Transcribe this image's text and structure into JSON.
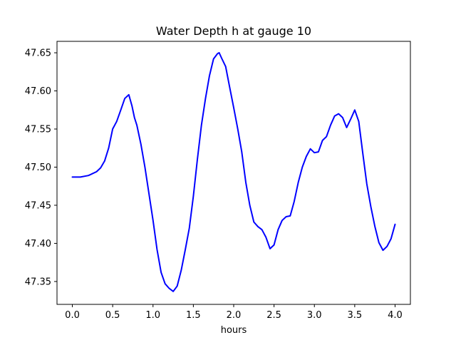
{
  "chart_data": {
    "type": "line",
    "title": "Water Depth h at gauge 10",
    "xlabel": "hours",
    "ylabel": "",
    "xlim": [
      -0.19,
      4.19
    ],
    "ylim": [
      47.32,
      47.665
    ],
    "grid": false,
    "legend": "none",
    "x_ticks": [
      0.0,
      0.5,
      1.0,
      1.5,
      2.0,
      2.5,
      3.0,
      3.5,
      4.0
    ],
    "x_tick_labels": [
      "0.0",
      "0.5",
      "1.0",
      "1.5",
      "2.0",
      "2.5",
      "3.0",
      "3.5",
      "4.0"
    ],
    "y_ticks": [
      47.35,
      47.4,
      47.45,
      47.5,
      47.55,
      47.6,
      47.65
    ],
    "y_tick_labels": [
      "47.35",
      "47.40",
      "47.45",
      "47.50",
      "47.55",
      "47.60",
      "47.65"
    ],
    "series": [
      {
        "color": "#0000ff",
        "x": [
          0.0,
          0.1,
          0.2,
          0.3,
          0.35,
          0.4,
          0.45,
          0.5,
          0.55,
          0.6,
          0.65,
          0.7,
          0.74,
          0.77,
          0.8,
          0.85,
          0.9,
          0.95,
          1.0,
          1.05,
          1.1,
          1.15,
          1.2,
          1.25,
          1.3,
          1.35,
          1.4,
          1.45,
          1.5,
          1.55,
          1.6,
          1.65,
          1.7,
          1.75,
          1.8,
          1.82,
          1.85,
          1.9,
          1.95,
          2.0,
          2.05,
          2.1,
          2.15,
          2.2,
          2.25,
          2.3,
          2.35,
          2.4,
          2.45,
          2.5,
          2.55,
          2.6,
          2.65,
          2.7,
          2.75,
          2.8,
          2.85,
          2.9,
          2.95,
          3.0,
          3.05,
          3.1,
          3.15,
          3.2,
          3.25,
          3.3,
          3.35,
          3.4,
          3.45,
          3.5,
          3.55,
          3.6,
          3.65,
          3.7,
          3.75,
          3.8,
          3.85,
          3.9,
          3.95,
          4.0
        ],
        "y": [
          47.487,
          47.487,
          47.489,
          47.494,
          47.499,
          47.508,
          47.525,
          47.55,
          47.56,
          47.575,
          47.59,
          47.595,
          47.58,
          47.565,
          47.555,
          47.53,
          47.5,
          47.465,
          47.43,
          47.392,
          47.362,
          47.347,
          47.341,
          47.337,
          47.344,
          47.365,
          47.392,
          47.42,
          47.462,
          47.51,
          47.555,
          47.59,
          47.62,
          47.642,
          47.649,
          47.65,
          47.643,
          47.632,
          47.605,
          47.578,
          47.55,
          47.52,
          47.48,
          47.45,
          47.428,
          47.422,
          47.418,
          47.408,
          47.393,
          47.398,
          47.418,
          47.43,
          47.435,
          47.436,
          47.455,
          47.48,
          47.5,
          47.514,
          47.524,
          47.519,
          47.52,
          47.535,
          47.54,
          47.555,
          47.567,
          47.57,
          47.565,
          47.552,
          47.563,
          47.575,
          47.56,
          47.518,
          47.478,
          47.448,
          47.422,
          47.401,
          47.391,
          47.396,
          47.406,
          47.425
        ]
      }
    ]
  }
}
